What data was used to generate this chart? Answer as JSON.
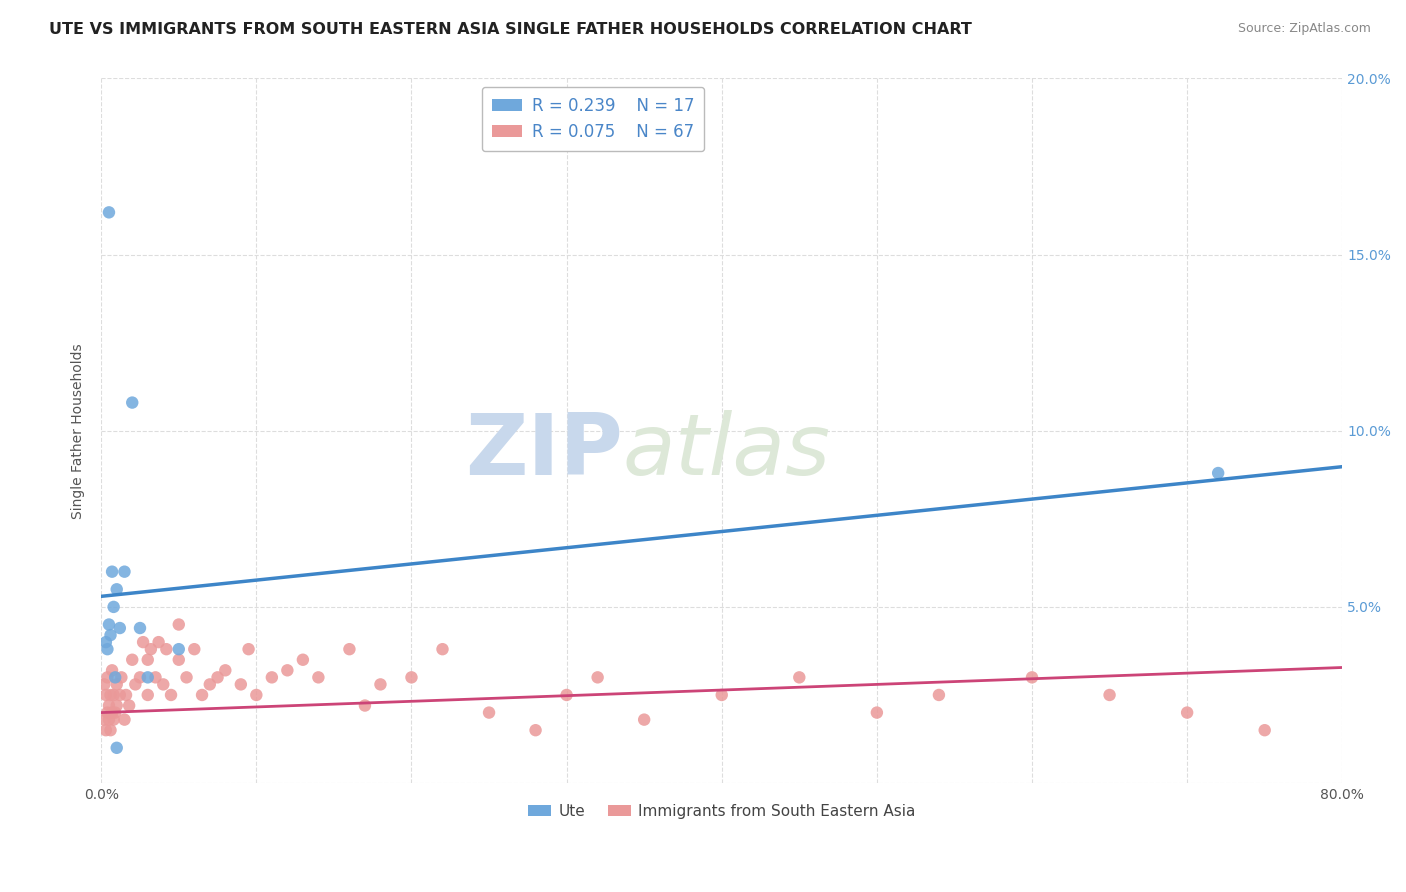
{
  "title": "UTE VS IMMIGRANTS FROM SOUTH EASTERN ASIA SINGLE FATHER HOUSEHOLDS CORRELATION CHART",
  "source": "Source: ZipAtlas.com",
  "ylabel": "Single Father Households",
  "watermark_zip": "ZIP",
  "watermark_atlas": "atlas",
  "xlim": [
    0.0,
    0.8
  ],
  "ylim": [
    0.0,
    0.2
  ],
  "xtick_positions": [
    0.0,
    0.1,
    0.2,
    0.3,
    0.4,
    0.5,
    0.6,
    0.7,
    0.8
  ],
  "xtick_labels": [
    "0.0%",
    "",
    "",
    "",
    "",
    "",
    "",
    "",
    "80.0%"
  ],
  "ytick_positions": [
    0.0,
    0.05,
    0.1,
    0.15,
    0.2
  ],
  "ytick_labels": [
    "",
    "5.0%",
    "10.0%",
    "15.0%",
    "20.0%"
  ],
  "series1_label": "Ute",
  "series1_R": "0.239",
  "series1_N": "17",
  "series1_color": "#6fa8dc",
  "series1_line_color": "#3d85c8",
  "series2_label": "Immigrants from South Eastern Asia",
  "series2_R": "0.075",
  "series2_N": "67",
  "series2_color": "#ea9999",
  "series2_line_color": "#cc4477",
  "legend_text_color": "#4a86c8",
  "background_color": "#ffffff",
  "grid_color": "#dddddd",
  "title_fontsize": 11.5,
  "axis_label_fontsize": 10,
  "tick_fontsize": 10,
  "legend_fontsize": 12,
  "ute_x": [
    0.003,
    0.004,
    0.005,
    0.006,
    0.007,
    0.008,
    0.009,
    0.01,
    0.012,
    0.015,
    0.02,
    0.025,
    0.03,
    0.05,
    0.72,
    0.005,
    0.01
  ],
  "ute_y": [
    0.04,
    0.038,
    0.045,
    0.042,
    0.06,
    0.05,
    0.03,
    0.055,
    0.044,
    0.06,
    0.108,
    0.044,
    0.03,
    0.038,
    0.088,
    0.162,
    0.01
  ],
  "immigrants_x": [
    0.002,
    0.002,
    0.003,
    0.003,
    0.004,
    0.004,
    0.005,
    0.005,
    0.006,
    0.006,
    0.007,
    0.007,
    0.008,
    0.008,
    0.009,
    0.01,
    0.01,
    0.012,
    0.013,
    0.015,
    0.016,
    0.018,
    0.02,
    0.022,
    0.025,
    0.027,
    0.03,
    0.03,
    0.032,
    0.035,
    0.037,
    0.04,
    0.042,
    0.045,
    0.05,
    0.05,
    0.055,
    0.06,
    0.065,
    0.07,
    0.075,
    0.08,
    0.09,
    0.095,
    0.1,
    0.11,
    0.12,
    0.13,
    0.14,
    0.16,
    0.17,
    0.18,
    0.2,
    0.22,
    0.25,
    0.28,
    0.3,
    0.32,
    0.35,
    0.4,
    0.45,
    0.5,
    0.54,
    0.6,
    0.65,
    0.7,
    0.75
  ],
  "immigrants_y": [
    0.028,
    0.018,
    0.025,
    0.015,
    0.02,
    0.03,
    0.022,
    0.018,
    0.025,
    0.015,
    0.02,
    0.032,
    0.018,
    0.025,
    0.02,
    0.022,
    0.028,
    0.025,
    0.03,
    0.018,
    0.025,
    0.022,
    0.035,
    0.028,
    0.03,
    0.04,
    0.025,
    0.035,
    0.038,
    0.03,
    0.04,
    0.028,
    0.038,
    0.025,
    0.045,
    0.035,
    0.03,
    0.038,
    0.025,
    0.028,
    0.03,
    0.032,
    0.028,
    0.038,
    0.025,
    0.03,
    0.032,
    0.035,
    0.03,
    0.038,
    0.022,
    0.028,
    0.03,
    0.038,
    0.02,
    0.015,
    0.025,
    0.03,
    0.018,
    0.025,
    0.03,
    0.02,
    0.025,
    0.03,
    0.025,
    0.02,
    0.015
  ]
}
